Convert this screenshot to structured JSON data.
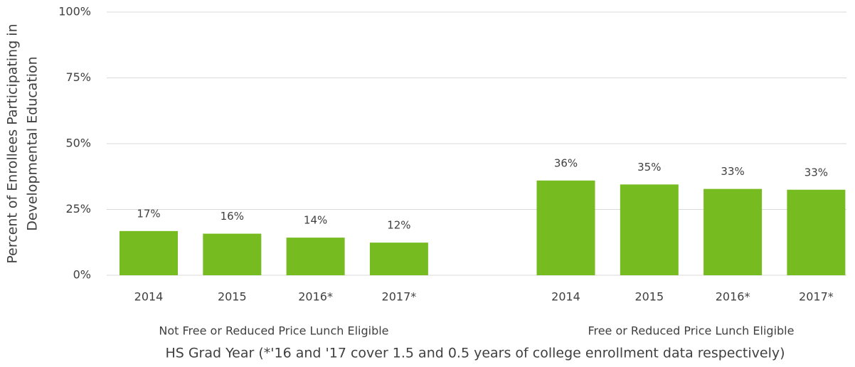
{
  "chart_data": {
    "type": "bar",
    "x_axis_label": "HS Grad Year (*'16 and '17 cover 1.5 and 0.5 years of college enrollment data respectively)",
    "y_axis_label": [
      "Percent of Enrollees Participating in",
      "Developmental Education"
    ],
    "color": "#76bc21",
    "groups": [
      {
        "name": "Not Free or Reduced Price Lunch Eligible",
        "categories": [
          "2014",
          "2015",
          "2016*",
          "2017*"
        ],
        "values": [
          16.8,
          15.8,
          14.3,
          12.4
        ],
        "value_labels": [
          "17%",
          "16%",
          "14%",
          "12%"
        ]
      },
      {
        "name": "Free or Reduced Price Lunch Eligible",
        "categories": [
          "2014",
          "2015",
          "2016*",
          "2017*"
        ],
        "values": [
          36,
          34.5,
          32.8,
          32.5
        ],
        "value_labels": [
          "36%",
          "35%",
          "33%",
          "33%"
        ]
      }
    ],
    "ylim": [
      0,
      100
    ],
    "yticks": [
      {
        "value": 0,
        "label": "0%"
      },
      {
        "value": 25,
        "label": "25%"
      },
      {
        "value": 50,
        "label": "50%"
      },
      {
        "value": 75,
        "label": "75%"
      },
      {
        "value": 100,
        "label": "100%"
      }
    ],
    "grid": true
  }
}
